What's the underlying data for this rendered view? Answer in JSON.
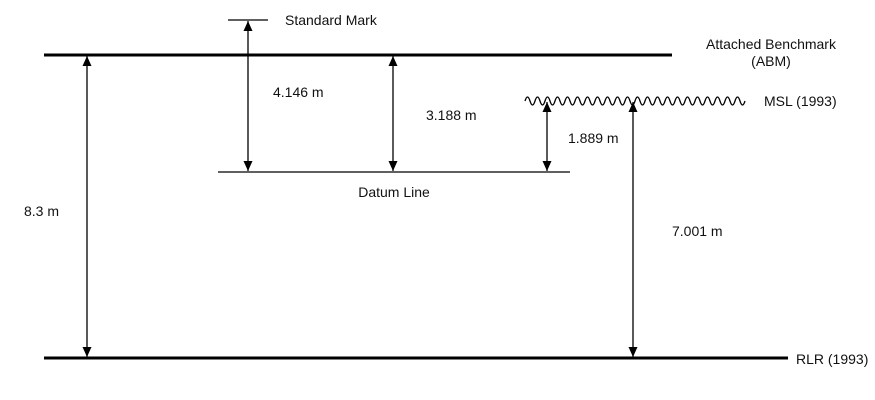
{
  "labels": {
    "standard_mark": "Standard Mark",
    "abm_line1": "Attached Benchmark",
    "abm_line2": "(ABM)",
    "msl": "MSL (1993)",
    "datum_line": "Datum Line",
    "rlr": "RLR (1993)"
  },
  "measurements": {
    "abm_to_rlr": "8.3 m",
    "standard_mark_to_datum": "4.146 m",
    "abm_to_datum": "3.188 m",
    "msl_to_datum": "1.889 m",
    "msl_to_rlr": "7.001 m"
  }
}
